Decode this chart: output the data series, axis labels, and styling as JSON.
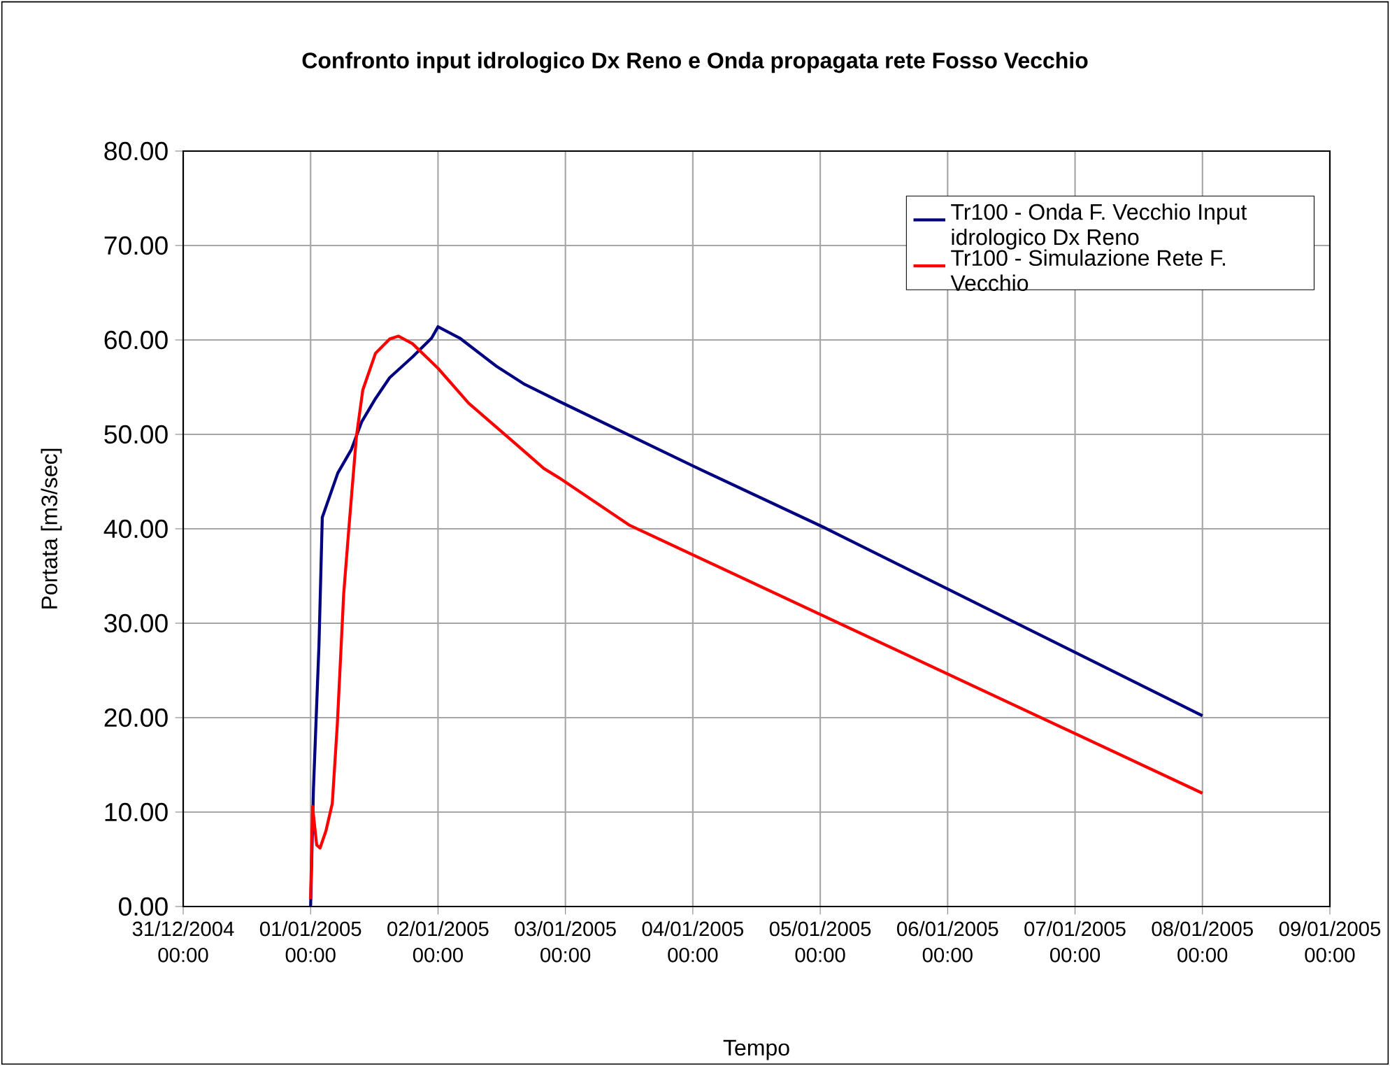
{
  "chart_data": {
    "type": "line",
    "title": "Confronto input idrologico Dx Reno e Onda propagata rete Fosso Vecchio",
    "xlabel": "Tempo",
    "ylabel": "Portata [m3/sec]",
    "xlim": [
      "2004-12-31T00:00",
      "2005-01-09T00:00"
    ],
    "xticks": [
      {
        "value": "2004-12-31T00:00",
        "label": "31/12/2004 00:00"
      },
      {
        "value": "2005-01-01T00:00",
        "label": "01/01/2005 00:00"
      },
      {
        "value": "2005-01-02T00:00",
        "label": "02/01/2005 00:00"
      },
      {
        "value": "2005-01-03T00:00",
        "label": "03/01/2005 00:00"
      },
      {
        "value": "2005-01-04T00:00",
        "label": "04/01/2005 00:00"
      },
      {
        "value": "2005-01-05T00:00",
        "label": "05/01/2005 00:00"
      },
      {
        "value": "2005-01-06T00:00",
        "label": "06/01/2005 00:00"
      },
      {
        "value": "2005-01-07T00:00",
        "label": "07/01/2005 00:00"
      },
      {
        "value": "2005-01-08T00:00",
        "label": "08/01/2005 00:00"
      },
      {
        "value": "2005-01-09T00:00",
        "label": "09/01/2005 00:00"
      }
    ],
    "ylim": [
      0,
      80
    ],
    "yticks": [
      {
        "value": 0,
        "label": "0.00"
      },
      {
        "value": 10,
        "label": "10.00"
      },
      {
        "value": 20,
        "label": "20.00"
      },
      {
        "value": 30,
        "label": "30.00"
      },
      {
        "value": 40,
        "label": "40.00"
      },
      {
        "value": 50,
        "label": "50.00"
      },
      {
        "value": 60,
        "label": "60.00"
      },
      {
        "value": 70,
        "label": "70.00"
      },
      {
        "value": 80,
        "label": "80.00"
      }
    ],
    "grid": true,
    "legend": "top right",
    "marker": "none",
    "line_style": "solid",
    "series": [
      {
        "name": "Tr100 - Onda F. Vecchio Input idrologico Dx Reno",
        "color": "#000080",
        "x": [
          "2005-01-01T00:00",
          "2005-01-01T00:32",
          "2005-01-01T01:35",
          "2005-01-01T02:12",
          "2005-01-01T05:07",
          "2005-01-01T07:41",
          "2005-01-01T09:36",
          "2005-01-01T12:14",
          "2005-01-01T14:53",
          "2005-01-01T19:12",
          "2005-01-01T22:48",
          "2005-01-02T00:00",
          "2005-01-02T04:05",
          "2005-01-02T11:02",
          "2005-01-02T16:19",
          "2005-01-02T22:48",
          "2005-01-04T00:14",
          "2005-01-05T00:29",
          "2005-01-08T00:00"
        ],
        "values": [
          0,
          12.4,
          27.8,
          41.2,
          45.9,
          48.4,
          51.3,
          53.8,
          56.0,
          58.2,
          60.2,
          61.4,
          60.2,
          57.2,
          55.3,
          53.5,
          46.6,
          40.2,
          20.2
        ]
      },
      {
        "name": "Tr100 - Simulazione Rete F. Vecchio",
        "color": "#ff0000",
        "x": [
          "2005-01-01T00:00",
          "2005-01-01T00:22",
          "2005-01-01T01:09",
          "2005-01-01T01:47",
          "2005-01-01T02:53",
          "2005-01-01T04:05",
          "2005-01-01T05:02",
          "2005-01-01T06:14",
          "2005-01-01T07:12",
          "2005-01-01T08:38",
          "2005-01-01T09:50",
          "2005-01-01T12:14",
          "2005-01-01T14:53",
          "2005-01-01T16:34",
          "2005-01-01T19:12",
          "2005-01-02T00:00",
          "2005-01-02T05:46",
          "2005-01-02T12:58",
          "2005-01-02T19:55",
          "2005-01-02T22:48",
          "2005-01-03T12:00",
          "2005-01-08T00:00"
        ],
        "values": [
          0.8,
          10.6,
          6.5,
          6.2,
          8.0,
          10.9,
          19.3,
          33.1,
          40.0,
          49.8,
          54.7,
          58.6,
          60.1,
          60.4,
          59.6,
          57.0,
          53.3,
          49.8,
          46.4,
          45.4,
          40.4,
          12.0
        ]
      }
    ]
  }
}
